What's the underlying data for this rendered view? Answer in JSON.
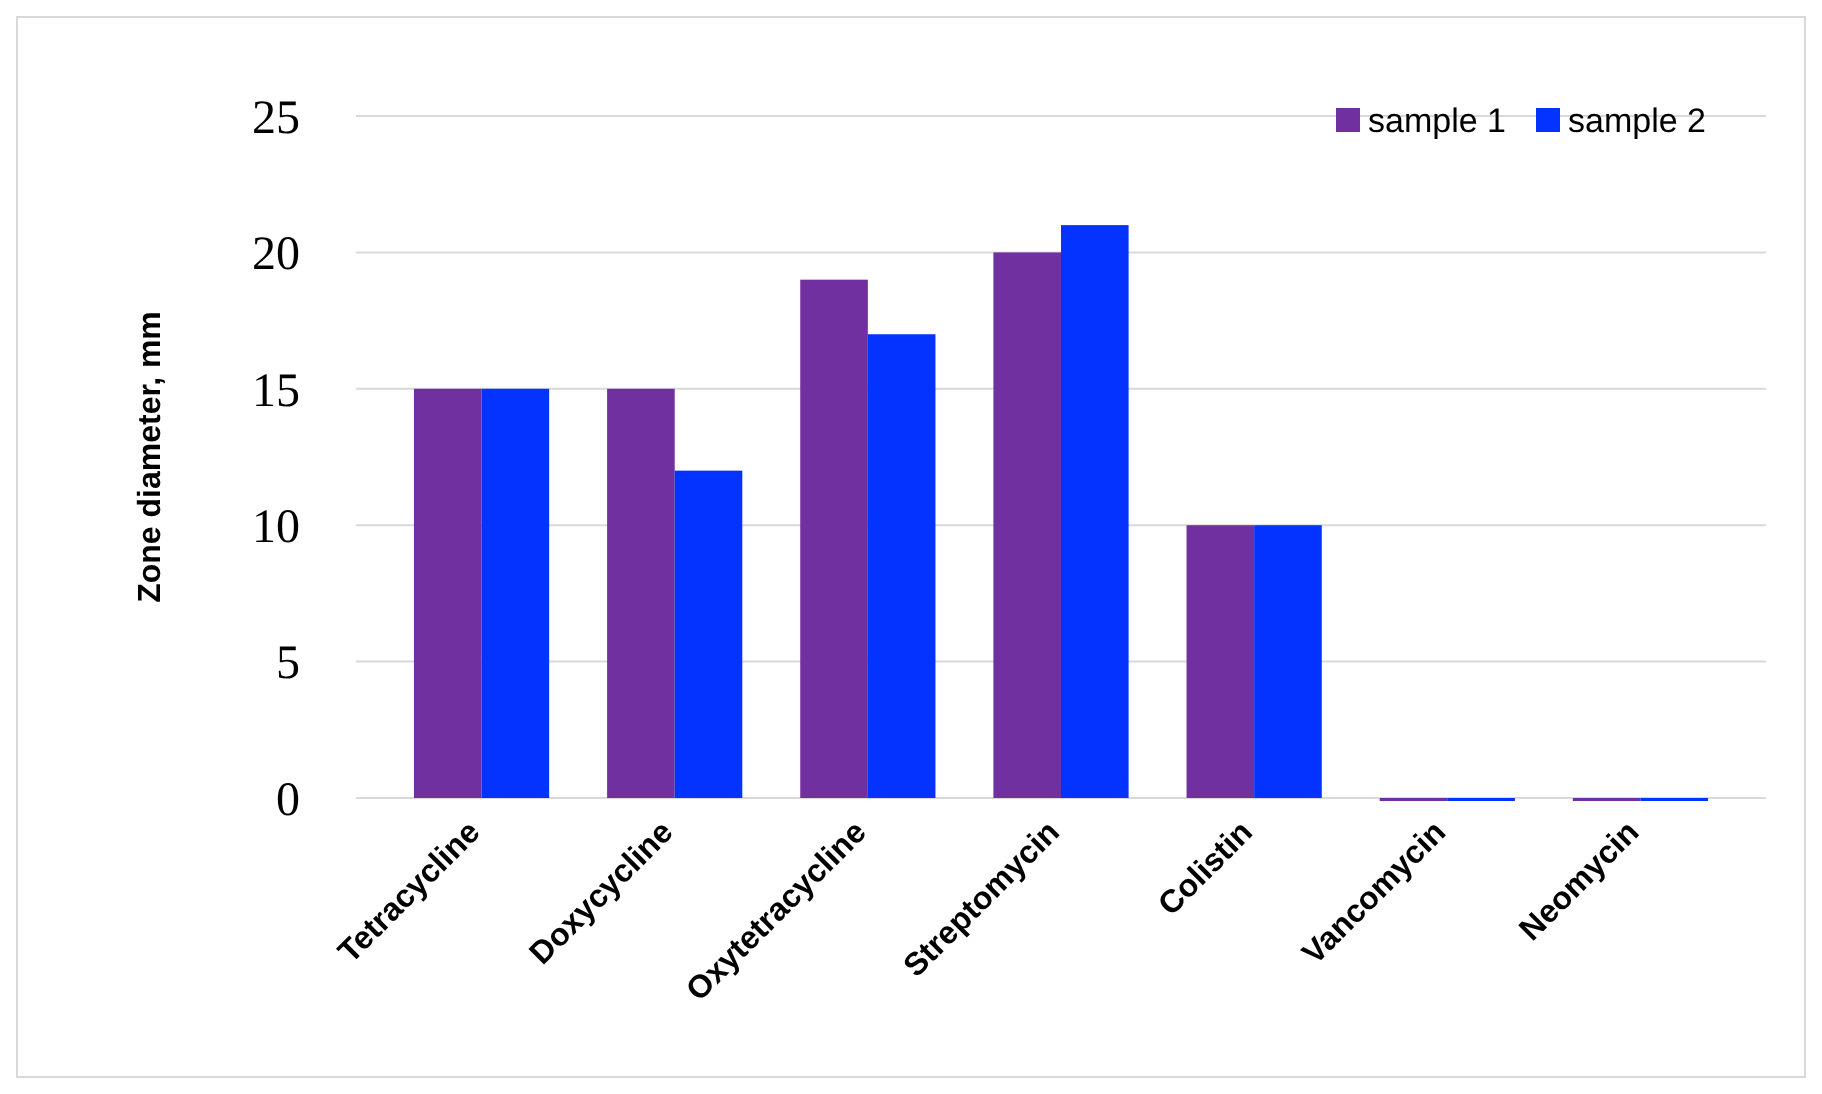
{
  "chart_data": {
    "type": "bar",
    "ylabel": "Zone diameter, mm",
    "categories": [
      "Tetracycline",
      "Doxycycline",
      "Oxytetracycline",
      "Streptomycin",
      "Colistin",
      "Vancomycin",
      "Neomycin"
    ],
    "series": [
      {
        "name": "sample 1",
        "color": "#7030a0",
        "values": [
          15,
          15,
          19,
          20,
          10,
          0,
          0
        ]
      },
      {
        "name": "sample 2",
        "color": "#0433ff",
        "values": [
          15,
          12,
          17,
          21,
          10,
          0,
          0
        ]
      }
    ],
    "ylim": [
      0,
      25
    ],
    "yticks": [
      0,
      5,
      10,
      15,
      20,
      25
    ],
    "grid": "y",
    "legend": "top right"
  }
}
